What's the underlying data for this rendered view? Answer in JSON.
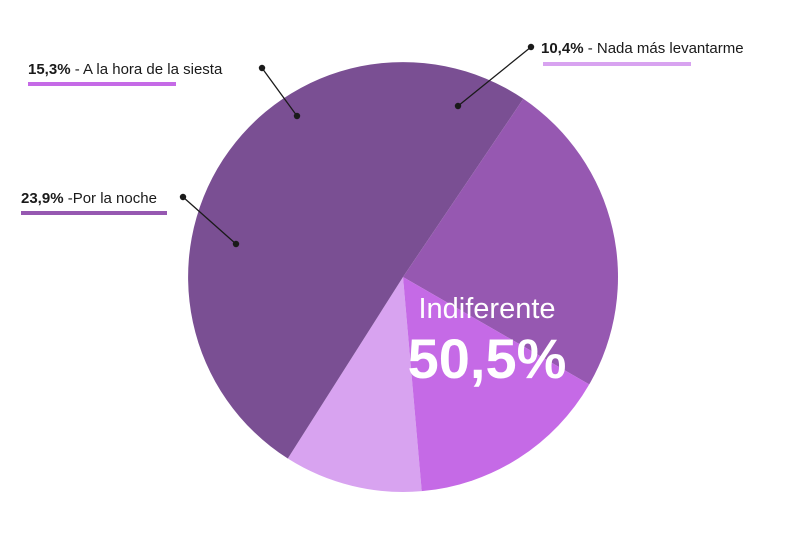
{
  "chart_data": {
    "type": "pie",
    "slices": [
      {
        "label": "Nada más levantarme",
        "value_label": "10,4%",
        "value": 10.4,
        "color": "#d8a3f0"
      },
      {
        "label": "Indiferente",
        "value_label": "50,5%",
        "value": 50.5,
        "color": "#7a4f93"
      },
      {
        "label": "Por la noche",
        "value_label": "23,9%",
        "value": 23.9,
        "color": "#9658b1"
      },
      {
        "label": "A la hora de la siesta",
        "value_label": "15,3%",
        "value": 15.3,
        "color": "#c56ae6"
      }
    ],
    "callouts": [
      {
        "pct": "10,4%",
        "text": " - Nada más levantarme"
      },
      {
        "pct": "15,3%",
        "text": " - A la hora de la siesta"
      },
      {
        "pct": "23,9%",
        "text": " -Por la noche"
      }
    ],
    "center_label": {
      "name": "Indiferente",
      "value": "50,5%"
    },
    "legend": "callouts"
  }
}
